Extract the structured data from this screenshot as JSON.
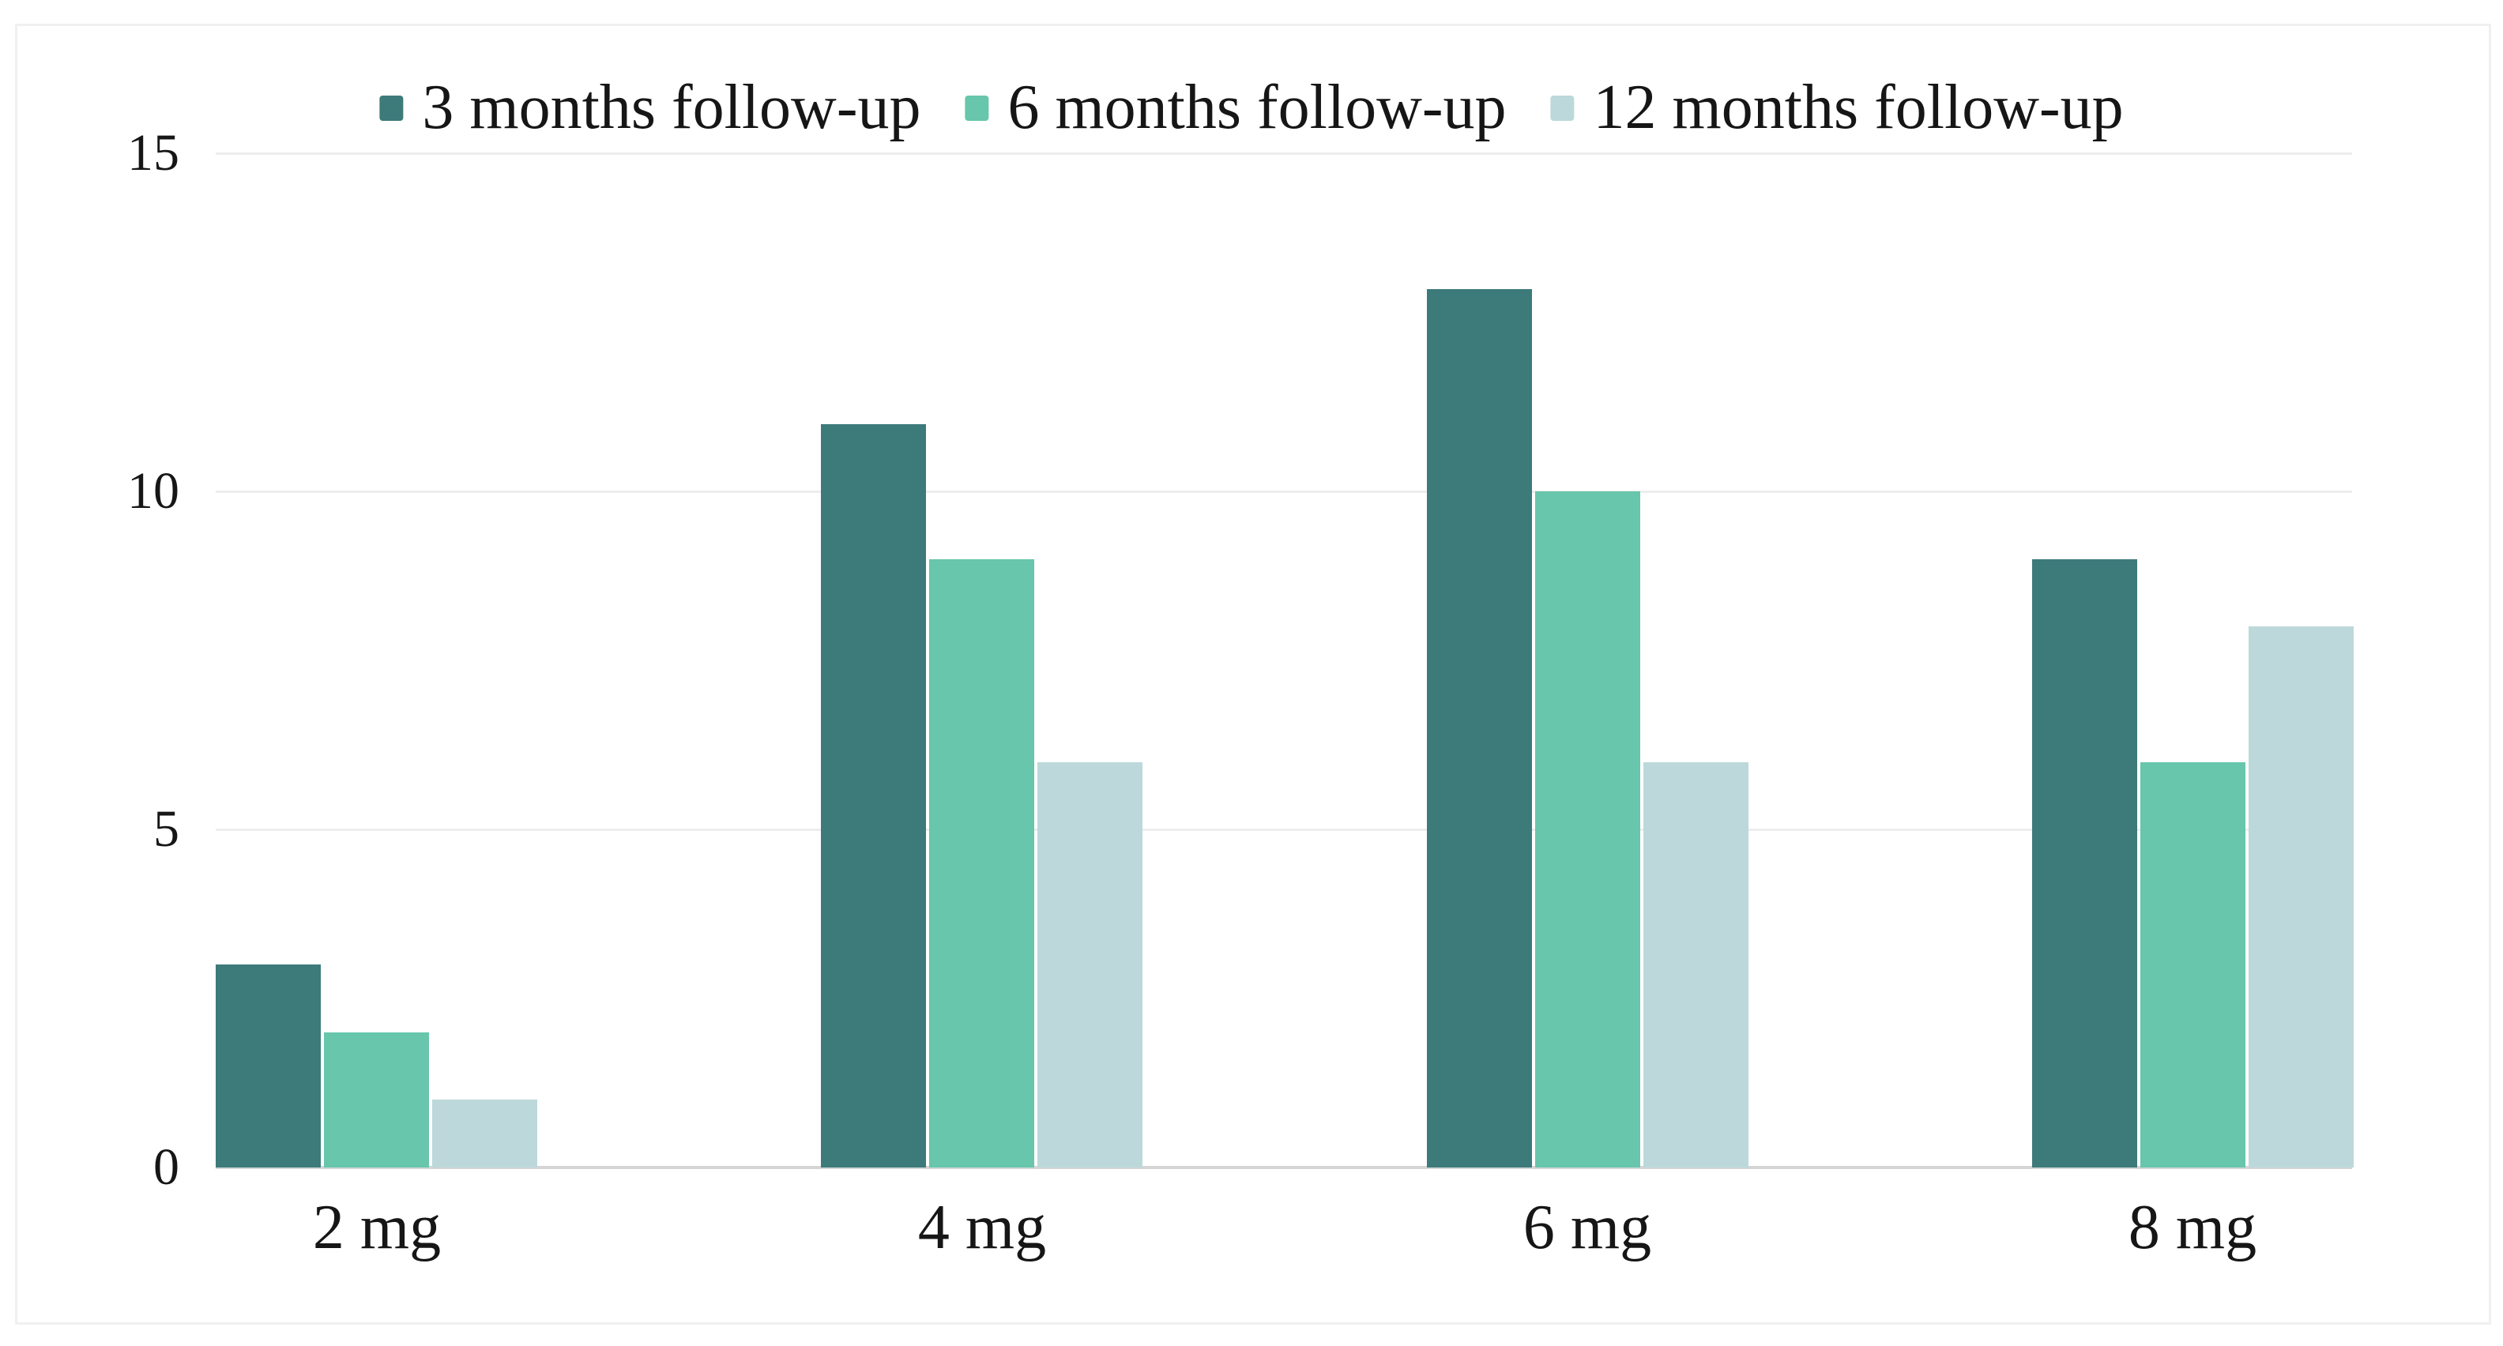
{
  "canvas": {
    "background": "#ffffff",
    "card_background": "#ffffff",
    "card_border_color": "#f0f0f0"
  },
  "chart_data": {
    "type": "bar",
    "title": "",
    "subtitle": "",
    "categories": [
      "2 mg",
      "4 mg",
      "6 mg",
      "8 mg"
    ],
    "series": [
      {
        "name": "3 months follow-up",
        "color": "#3d7a7a",
        "values": [
          3,
          11,
          13,
          9
        ]
      },
      {
        "name": "6 months follow-up",
        "color": "#67c6ab",
        "values": [
          2,
          9,
          10,
          6
        ]
      },
      {
        "name": "12 months follow-up",
        "color": "#bcd8da",
        "values": [
          1,
          6,
          6,
          8
        ]
      }
    ],
    "xlabel": "",
    "ylabel": "",
    "ylim": [
      0,
      15
    ],
    "yticks": [
      0,
      5,
      10,
      15
    ],
    "ytick_labels": [
      "0",
      "5",
      "10",
      "15"
    ],
    "grid": "horizontal",
    "gridline_color": "#ededed",
    "axis_line_color": "#d5d5d5",
    "tick_label_color": "#161616",
    "legend_position": "top-center",
    "legend_entries": [
      "3 months follow-up",
      "6 months follow-up",
      "12 months follow-up"
    ]
  }
}
